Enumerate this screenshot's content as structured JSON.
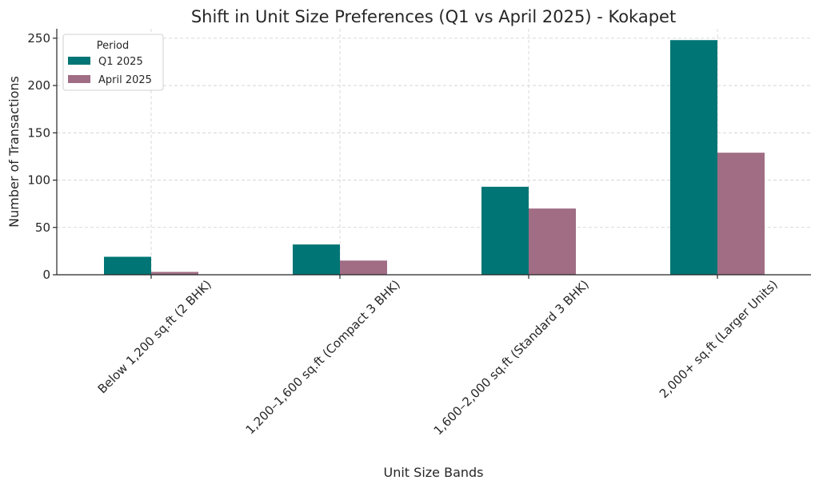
{
  "chart_data": {
    "type": "bar",
    "title": "Shift in Unit Size Preferences (Q1 vs April 2025) - Kokapet",
    "xlabel": "Unit Size Bands",
    "ylabel": "Number of Transactions",
    "categories": [
      "Below 1,200 sq.ft (2 BHK)",
      "1,200–1,600 sq.ft (Compact 3 BHK)",
      "1,600–2,000 sq.ft (Standard 3 BHK)",
      "2,000+ sq.ft (Larger Units)"
    ],
    "series": [
      {
        "name": "Q1 2025",
        "values": [
          19,
          32,
          93,
          248
        ],
        "color": "#007575"
      },
      {
        "name": "April 2025",
        "values": [
          3,
          15,
          70,
          129
        ],
        "color": "#a06d84"
      }
    ],
    "ylim": [
      0,
      260
    ],
    "yticks": [
      0,
      50,
      100,
      150,
      200,
      250
    ],
    "grid": true,
    "legend": {
      "title": "Period",
      "position": "top-left"
    }
  }
}
